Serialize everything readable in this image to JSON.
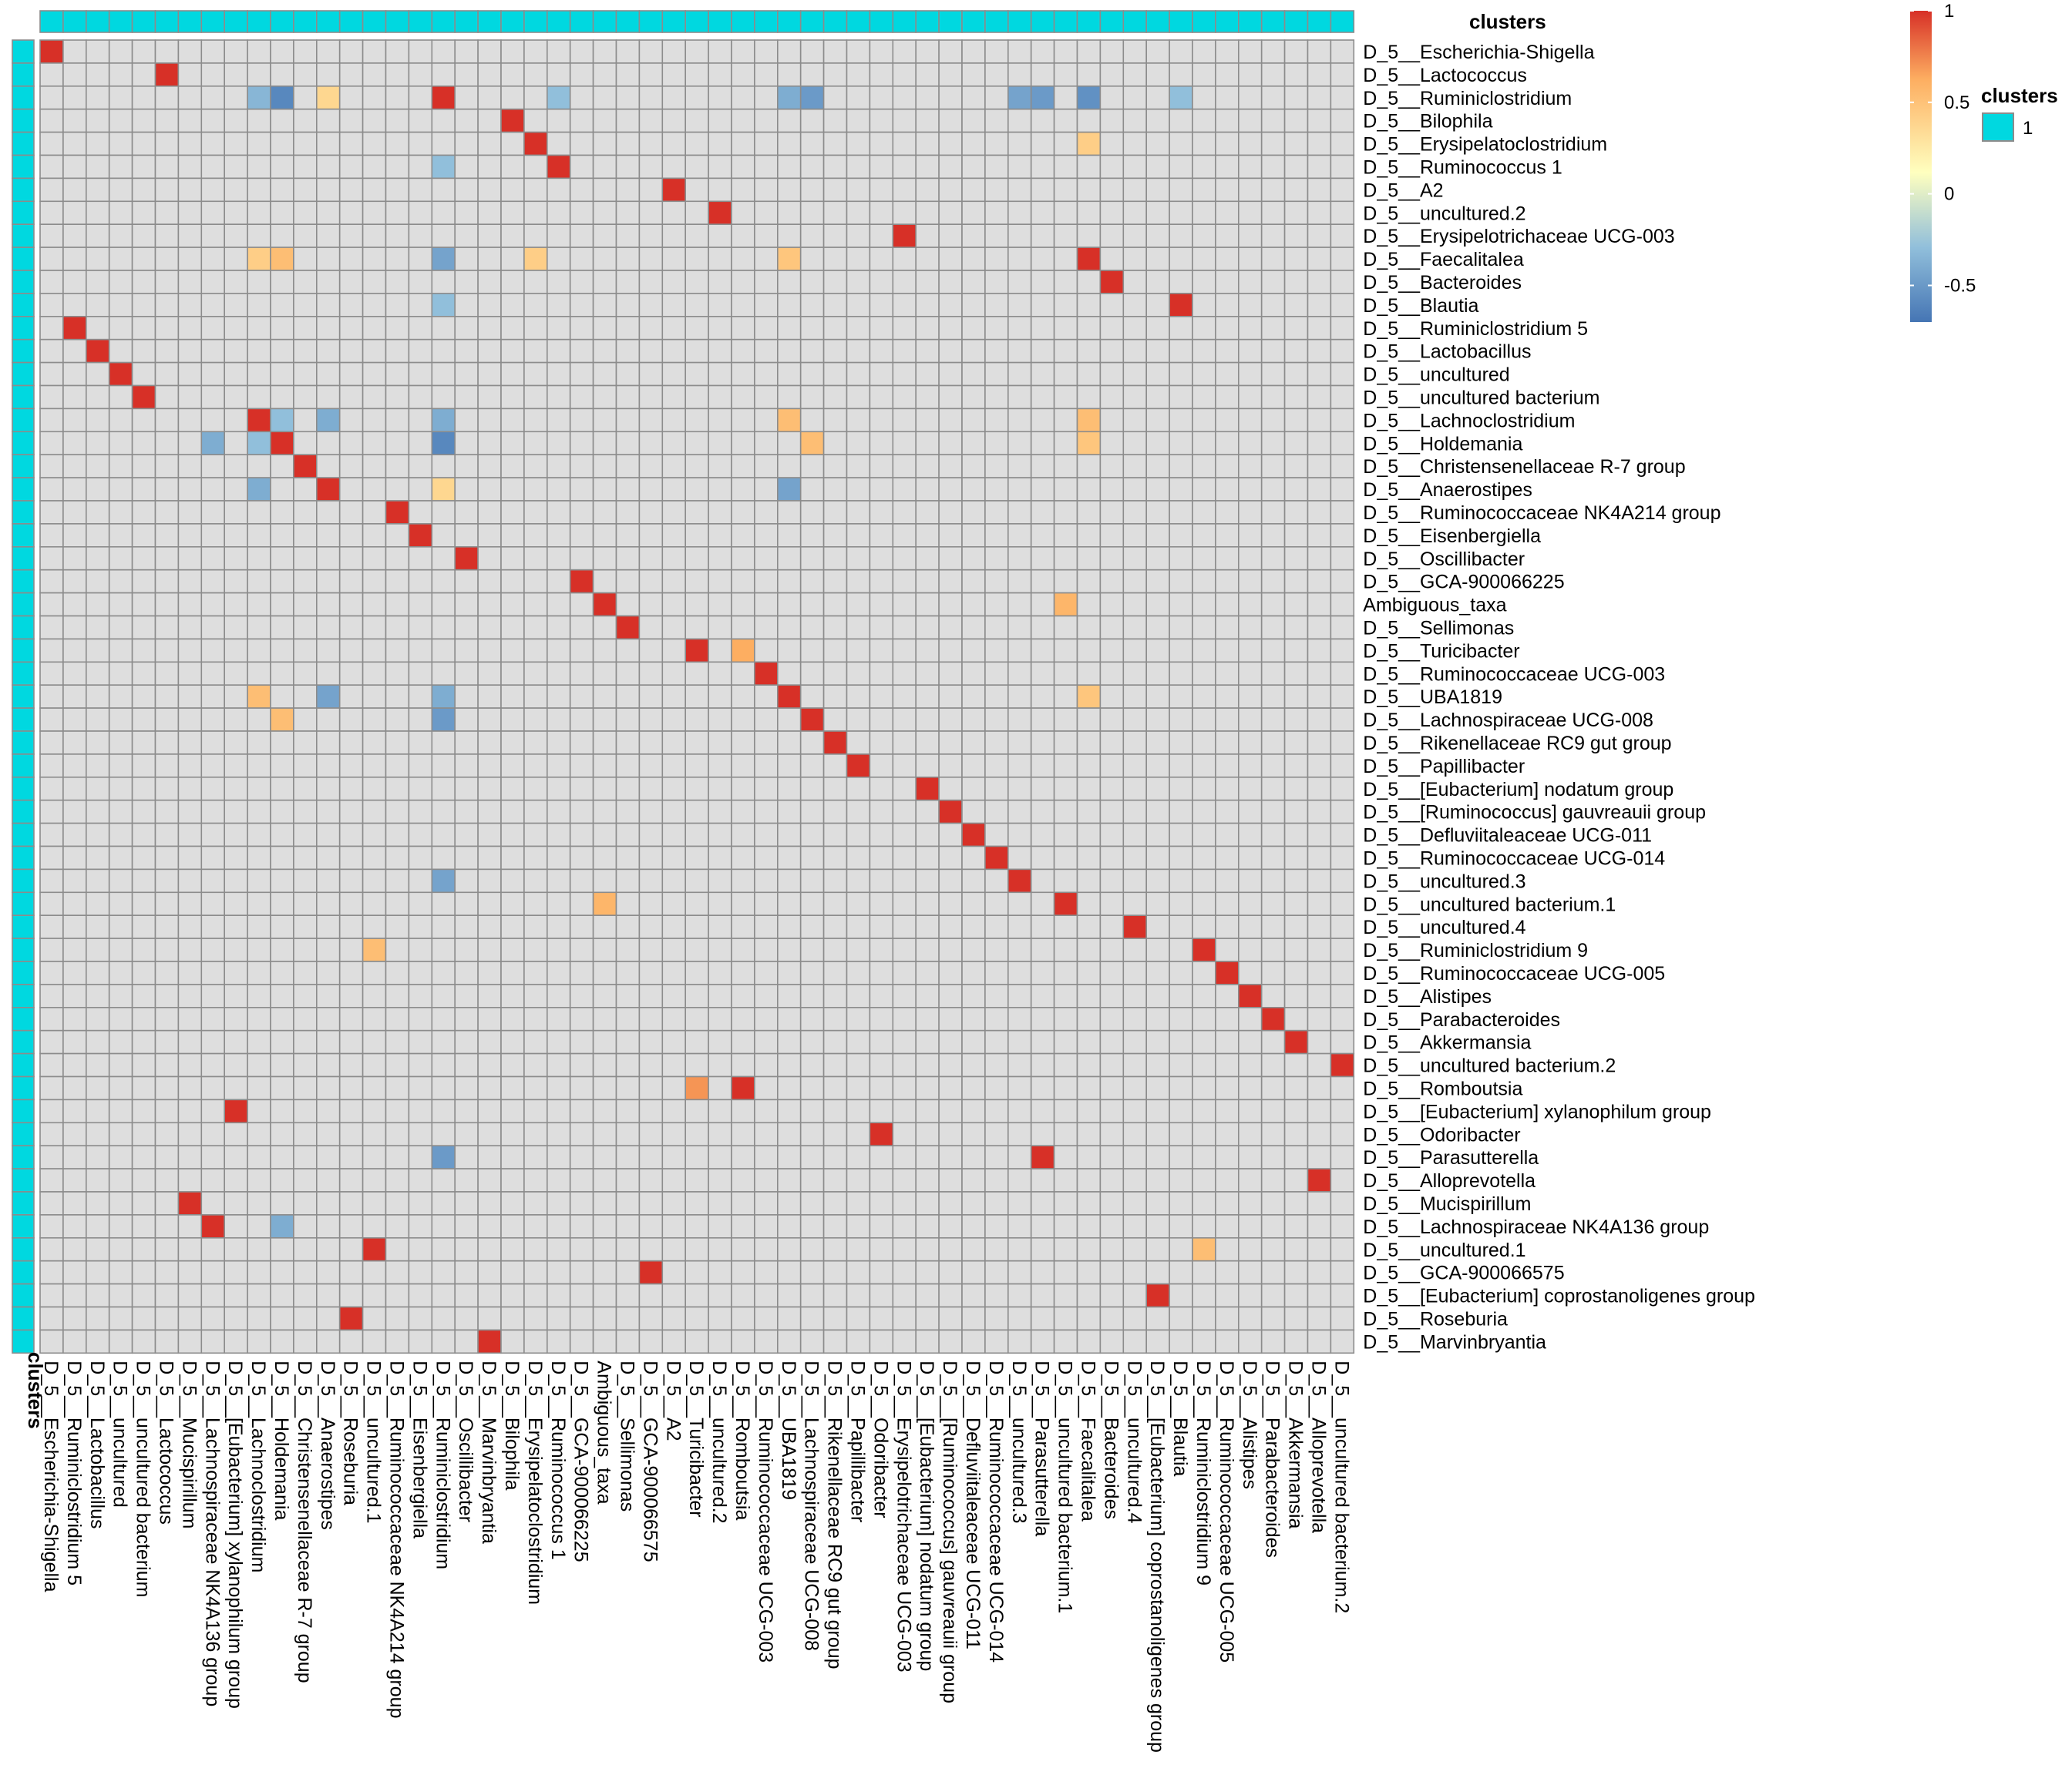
{
  "colors": {
    "cluster": "#00d8e0",
    "grid": "#8c8c8c",
    "na": "#dedede",
    "scale": [
      "#4575b4",
      "#91bfdb",
      "#ffffbf",
      "#fdae61",
      "#d73027"
    ]
  },
  "chart_data": {
    "type": "heatmap",
    "title": "",
    "annotation_name": "clusters",
    "rows": [
      "D_5__Escherichia-Shigella",
      "D_5__Lactococcus",
      "D_5__Ruminiclostridium",
      "D_5__Bilophila",
      "D_5__Erysipelatoclostridium",
      "D_5__Ruminococcus 1",
      "D_5__A2",
      "D_5__uncultured.2",
      "D_5__Erysipelotrichaceae UCG-003",
      "D_5__Faecalitalea",
      "D_5__Bacteroides",
      "D_5__Blautia",
      "D_5__Ruminiclostridium 5",
      "D_5__Lactobacillus",
      "D_5__uncultured",
      "D_5__uncultured bacterium",
      "D_5__Lachnoclostridium",
      "D_5__Holdemania",
      "D_5__Christensenellaceae R-7 group",
      "D_5__Anaerostipes",
      "D_5__Ruminococcaceae NK4A214 group",
      "D_5__Eisenbergiella",
      "D_5__Oscillibacter",
      "D_5__GCA-900066225",
      "Ambiguous_taxa",
      "D_5__Sellimonas",
      "D_5__Turicibacter",
      "D_5__Ruminococcaceae UCG-003",
      "D_5__UBA1819",
      "D_5__Lachnospiraceae UCG-008",
      "D_5__Rikenellaceae RC9 gut group",
      "D_5__Papillibacter",
      "D_5__[Eubacterium] nodatum group",
      "D_5__[Ruminococcus] gauvreauii group",
      "D_5__Defluviitaleaceae UCG-011",
      "D_5__Ruminococcaceae UCG-014",
      "D_5__uncultured.3",
      "D_5__uncultured bacterium.1",
      "D_5__uncultured.4",
      "D_5__Ruminiclostridium 9",
      "D_5__Ruminococcaceae UCG-005",
      "D_5__Alistipes",
      "D_5__Parabacteroides",
      "D_5__Akkermansia",
      "D_5__uncultured bacterium.2",
      "D_5__Romboutsia",
      "D_5__[Eubacterium] xylanophilum group",
      "D_5__Odoribacter",
      "D_5__Parasutterella",
      "D_5__Alloprevotella",
      "D_5__Mucispirillum",
      "D_5__Lachnospiraceae NK4A136 group",
      "D_5__uncultured.1",
      "D_5__GCA-900066575",
      "D_5__[Eubacterium] coprostanoligenes group",
      "D_5__Roseburia",
      "D_5__Marvinbryantia"
    ],
    "columns": [
      "D_5__Escherichia-Shigella",
      "D_5__Ruminiclostridium 5",
      "D_5__Lactobacillus",
      "D_5__uncultured",
      "D_5__uncultured bacterium",
      "D_5__Lactococcus",
      "D_5__Mucispirillum",
      "D_5__Lachnospiraceae NK4A136 group",
      "D_5__[Eubacterium] xylanophilum group",
      "D_5__Lachnoclostridium",
      "D_5__Holdemania",
      "D_5__Christensenellaceae R-7 group",
      "D_5__Anaerostipes",
      "D_5__Roseburia",
      "D_5__uncultured.1",
      "D_5__Ruminococcaceae NK4A214 group",
      "D_5__Eisenbergiella",
      "D_5__Ruminiclostridium",
      "D_5__Oscillibacter",
      "D_5__Marvinbryantia",
      "D_5__Bilophila",
      "D_5__Erysipelatoclostridium",
      "D_5__Ruminococcus 1",
      "D_5__GCA-900066225",
      "Ambiguous_taxa",
      "D_5__Sellimonas",
      "D_5__GCA-900066575",
      "D_5__A2",
      "D_5__Turicibacter",
      "D_5__uncultured.2",
      "D_5__Romboutsia",
      "D_5__Ruminococcaceae UCG-003",
      "D_5__UBA1819",
      "D_5__Lachnospiraceae UCG-008",
      "D_5__Rikenellaceae RC9 gut group",
      "D_5__Papillibacter",
      "D_5__Odoribacter",
      "D_5__Erysipelotrichaceae UCG-003",
      "D_5__[Eubacterium] nodatum group",
      "D_5__[Ruminococcus] gauvreauii group",
      "D_5__Defluviitaleaceae UCG-011",
      "D_5__Ruminococcaceae UCG-014",
      "D_5__uncultured.3",
      "D_5__Parasutterella",
      "D_5__uncultured bacterium.1",
      "D_5__Faecalitalea",
      "D_5__Bacteroides",
      "D_5__uncultured.4",
      "D_5__[Eubacterium] coprostanoligenes group",
      "D_5__Blautia",
      "D_5__Ruminiclostridium 9",
      "D_5__Ruminococcaceae UCG-005",
      "D_5__Alistipes",
      "D_5__Parabacteroides",
      "D_5__Akkermansia",
      "D_5__Alloprevotella",
      "D_5__uncultured bacterium.2"
    ],
    "clusters": {
      "rows": [
        "1",
        "1",
        "1",
        "1",
        "1",
        "1",
        "1",
        "1",
        "1",
        "1",
        "1",
        "1",
        "1",
        "1",
        "1",
        "1",
        "1",
        "1",
        "1",
        "1",
        "1",
        "1",
        "1",
        "1",
        "1",
        "1",
        "1",
        "1",
        "1",
        "1",
        "1",
        "1",
        "1",
        "1",
        "1",
        "1",
        "1",
        "1",
        "1",
        "1",
        "1",
        "1",
        "1",
        "1",
        "1",
        "1",
        "1",
        "1",
        "1",
        "1",
        "1",
        "1",
        "1",
        "1",
        "1",
        "1",
        "1"
      ],
      "columns": [
        "1",
        "1",
        "1",
        "1",
        "1",
        "1",
        "1",
        "1",
        "1",
        "1",
        "1",
        "1",
        "1",
        "1",
        "1",
        "1",
        "1",
        "1",
        "1",
        "1",
        "1",
        "1",
        "1",
        "1",
        "1",
        "1",
        "1",
        "1",
        "1",
        "1",
        "1",
        "1",
        "1",
        "1",
        "1",
        "1",
        "1",
        "1",
        "1",
        "1",
        "1",
        "1",
        "1",
        "1",
        "1",
        "1",
        "1",
        "1",
        "1",
        "1",
        "1",
        "1",
        "1",
        "1",
        "1",
        "1",
        "1"
      ]
    },
    "legend": {
      "range": [
        -0.7,
        1
      ],
      "ticks": [
        1,
        0.5,
        0,
        -0.5
      ],
      "tick_labels": [
        "1",
        "0.5",
        "0",
        "-0.5"
      ],
      "placement": "top-right",
      "cluster_title": "clusters",
      "cluster_items": [
        "1"
      ]
    },
    "default_value": null,
    "values": {
      "D_5__Ruminiclostridium": {
        "D_5__Lachnoclostridium": -0.35,
        "D_5__Holdemania": -0.6,
        "D_5__Anaerostipes": 0.25,
        "D_5__Ruminiclostridium": 1.0,
        "D_5__Ruminococcus 1": -0.3,
        "D_5__UBA1819": -0.4,
        "D_5__Lachnospiraceae UCG-008": -0.5,
        "D_5__uncultured.3": -0.45,
        "D_5__Parasutterella": -0.5,
        "D_5__Faecalitalea": -0.55,
        "D_5__Blautia": -0.3
      },
      "D_5__Faecalitalea": {
        "D_5__Lachnoclostridium": 0.3,
        "D_5__Holdemania": 0.4,
        "D_5__Ruminiclostridium": -0.45,
        "D_5__UBA1819": 0.35,
        "D_5__Faecalitalea": 1.0,
        "D_5__Erysipelatoclostridium": 0.3
      },
      "D_5__Lachnoclostridium": {
        "D_5__Lachnoclostridium": 1.0,
        "D_5__Anaerostipes": -0.4,
        "D_5__Ruminiclostridium": -0.4,
        "D_5__UBA1819": 0.4,
        "D_5__Faecalitalea": 0.4
      },
      "D_5__Holdemania": {
        "D_5__Holdemania": 1.0,
        "D_5__Ruminiclostridium": -0.6,
        "D_5__Lachnospiraceae UCG-008": 0.4,
        "D_5__Lachnoclostridium": -0.3,
        "D_5__Faecalitalea": 0.35
      },
      "D_5__Turicibacter": {
        "D_5__Turicibacter": 0.95,
        "D_5__Romboutsia": 0.5
      },
      "D_5__Romboutsia": {
        "D_5__Romboutsia": 1.0,
        "D_5__Turicibacter": 0.6
      },
      "D_5__uncultured bacterium.1": {
        "D_5__uncultured bacterium.1": 1.0,
        "Ambiguous_taxa": 0.45
      },
      "D_5__[Eubacterium] xylanophilum group": {
        "D_5__[Eubacterium] xylanophilum group": 1.0
      },
      "D_5__Lachnospiraceae NK4A136 group": {
        "D_5__Lachnospiraceae NK4A136 group": 1.0,
        "D_5__Holdemania": -0.4
      },
      "D_5__uncultured.1": {
        "D_5__uncultured.1": 1.0,
        "D_5__Ruminiclostridium 9": 0.4
      },
      "D_5__Ruminiclostridium 9": {
        "D_5__Ruminiclostridium 9": 1.0,
        "D_5__uncultured.1": 0.4
      },
      "D_5__UBA1819": {
        "D_5__UBA1819": 1.0,
        "D_5__Anaerostipes": -0.45
      },
      "D_5__Sellimonas": {
        "D_5__Sellimonas": 1.0
      },
      "D_5__Ruminococcaceae NK4A214 group": {
        "D_5__Ruminococcaceae NK4A214 group": 1.0
      },
      "D_5__Anaerostipes": {
        "D_5__Anaerostipes": 1.0
      }
    }
  }
}
